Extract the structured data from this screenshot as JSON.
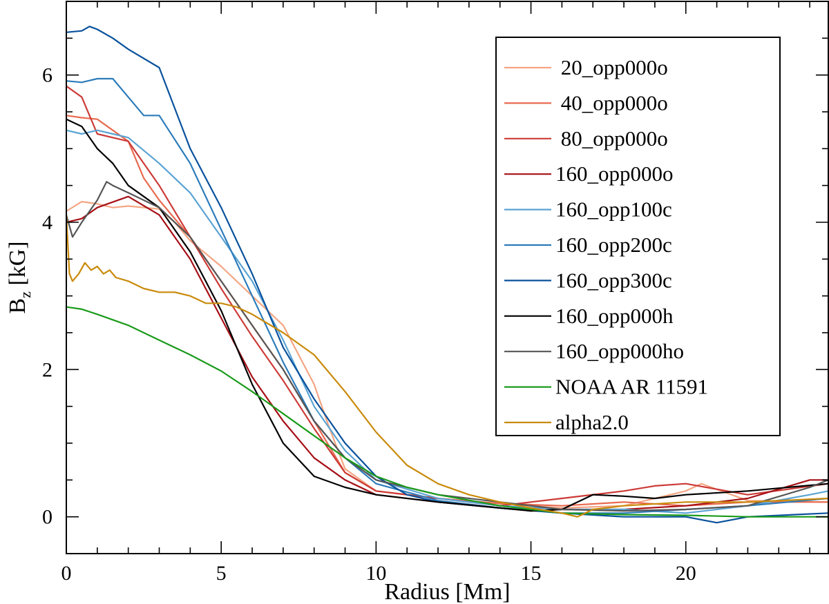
{
  "chart_data": {
    "type": "line",
    "title": "",
    "xlabel": "Radius [Mm]",
    "ylabel_main": "B",
    "ylabel_sub": "z",
    "ylabel_unit": " [kG]",
    "xlim": [
      0,
      24.6
    ],
    "ylim": [
      -0.5,
      7.0
    ],
    "xticks": [
      0,
      5,
      10,
      15,
      20
    ],
    "xtick_labels": [
      "0",
      "5",
      "10",
      "15",
      "20"
    ],
    "yticks": [
      0,
      2,
      4,
      6
    ],
    "ytick_labels": [
      "0",
      "2",
      "4",
      "6"
    ],
    "x_minor_step": 1,
    "y_minor_step": 0.5,
    "grid": false,
    "legend_position": "top-right",
    "series": [
      {
        "name": " 20_opp000o",
        "color": "#f4a582",
        "x": [
          0,
          0.5,
          1,
          1.5,
          2,
          2.5,
          3,
          3.5,
          4,
          5,
          6,
          7,
          8,
          8.5,
          9,
          10,
          12,
          14,
          16,
          18,
          20,
          20.5,
          22,
          24.6
        ],
        "y": [
          4.15,
          4.28,
          4.25,
          4.2,
          4.22,
          4.2,
          4.18,
          4.0,
          3.75,
          3.4,
          3.0,
          2.6,
          1.8,
          1.2,
          0.65,
          0.35,
          0.25,
          0.18,
          0.12,
          0.15,
          0.35,
          0.45,
          0.22,
          0.2
        ]
      },
      {
        "name": " 40_opp000o",
        "color": "#e8694e",
        "x": [
          0,
          0.5,
          1,
          2,
          2.5,
          3,
          4,
          5,
          6,
          7,
          8,
          9,
          10,
          12,
          14,
          16,
          18,
          20,
          22,
          24.6
        ],
        "y": [
          5.45,
          5.42,
          5.4,
          5.1,
          4.6,
          4.3,
          3.8,
          3.2,
          2.6,
          2.0,
          1.3,
          0.6,
          0.35,
          0.25,
          0.18,
          0.15,
          0.2,
          0.15,
          0.2,
          0.2
        ]
      },
      {
        "name": " 80_opp000o",
        "color": "#cc3a36",
        "x": [
          0,
          0.5,
          1,
          2,
          3,
          4,
          5,
          6,
          7,
          8,
          9,
          10,
          12,
          14,
          15,
          16,
          18,
          19,
          20,
          22,
          24.6
        ],
        "y": [
          5.85,
          5.7,
          5.2,
          5.1,
          4.5,
          3.8,
          3.1,
          2.45,
          1.85,
          1.2,
          0.6,
          0.35,
          0.25,
          0.15,
          0.2,
          0.25,
          0.35,
          0.42,
          0.45,
          0.3,
          0.45
        ]
      },
      {
        "name": "160_opp000o",
        "color": "#a50f15",
        "x": [
          0,
          0.5,
          1,
          2,
          3,
          4,
          5,
          6,
          7,
          8,
          9,
          10,
          12,
          14,
          15,
          16,
          18,
          20,
          22,
          24,
          24.6
        ],
        "y": [
          4.0,
          4.05,
          4.2,
          4.35,
          4.1,
          3.5,
          2.7,
          1.9,
          1.3,
          0.8,
          0.5,
          0.3,
          0.2,
          0.12,
          0.08,
          0.1,
          0.1,
          0.15,
          0.25,
          0.5,
          0.5
        ]
      },
      {
        "name": "160_opp100c",
        "color": "#5aa3d3",
        "x": [
          0,
          0.5,
          1,
          1.5,
          2,
          3,
          4,
          5,
          6,
          7,
          8,
          9,
          10,
          12,
          14,
          16,
          18,
          20,
          22,
          24,
          24.6
        ],
        "y": [
          5.25,
          5.2,
          5.25,
          5.2,
          5.15,
          4.8,
          4.4,
          3.8,
          3.2,
          2.4,
          1.5,
          0.9,
          0.5,
          0.25,
          0.15,
          0.1,
          0.1,
          0.05,
          0.15,
          0.3,
          0.35
        ]
      },
      {
        "name": "160_opp200c",
        "color": "#2b7bba",
        "x": [
          0,
          0.5,
          1,
          1.5,
          2,
          2.5,
          3,
          4,
          5,
          6,
          7,
          8,
          9,
          10,
          12,
          14,
          16,
          18,
          20,
          22,
          24.6
        ],
        "y": [
          5.92,
          5.9,
          5.95,
          5.95,
          5.7,
          5.45,
          5.45,
          4.8,
          3.9,
          3.0,
          2.1,
          1.3,
          0.8,
          0.45,
          0.22,
          0.12,
          0.05,
          0.05,
          0.1,
          0.15,
          0.25
        ]
      },
      {
        "name": "160_opp300c",
        "color": "#08519c",
        "x": [
          0,
          0.5,
          0.75,
          1,
          1.5,
          2,
          3,
          4,
          5,
          6,
          7,
          8,
          9,
          10,
          11,
          12,
          14,
          16,
          18,
          20,
          21,
          22,
          24.6
        ],
        "y": [
          6.58,
          6.6,
          6.66,
          6.62,
          6.5,
          6.35,
          6.1,
          5.0,
          4.2,
          3.3,
          2.3,
          1.6,
          1.0,
          0.55,
          0.3,
          0.2,
          0.12,
          0.05,
          0.0,
          0.0,
          -0.08,
          0.0,
          0.05
        ]
      },
      {
        "name": "160_opp000h",
        "color": "#000000",
        "x": [
          0,
          0.5,
          1,
          1.5,
          2,
          3,
          4,
          5,
          6,
          7,
          8,
          9,
          10,
          12,
          14,
          15,
          16,
          17,
          18,
          19,
          20,
          22,
          24.6
        ],
        "y": [
          5.4,
          5.3,
          5.0,
          4.8,
          4.5,
          4.2,
          3.6,
          2.8,
          1.8,
          1.0,
          0.55,
          0.4,
          0.3,
          0.2,
          0.12,
          0.08,
          0.1,
          0.3,
          0.28,
          0.25,
          0.3,
          0.35,
          0.45
        ]
      },
      {
        "name": "160_opp000ho",
        "color": "#555555",
        "x": [
          0,
          0.2,
          0.5,
          1,
          1.3,
          1.5,
          2,
          3,
          4,
          5,
          6,
          7,
          8,
          9,
          10,
          12,
          14,
          16,
          18,
          20,
          22,
          24,
          24.6
        ],
        "y": [
          4.1,
          3.8,
          4.0,
          4.3,
          4.55,
          4.5,
          4.4,
          4.2,
          3.8,
          3.2,
          2.6,
          2.0,
          1.3,
          0.8,
          0.5,
          0.3,
          0.2,
          0.1,
          0.08,
          0.1,
          0.15,
          0.4,
          0.5
        ]
      },
      {
        "name": "NOAA AR 11591",
        "color": "#1a9a1a",
        "x": [
          0,
          0.5,
          1,
          2,
          3,
          4,
          5,
          6,
          7,
          8,
          9,
          10,
          11,
          12,
          14,
          16,
          18,
          20,
          22,
          24.6
        ],
        "y": [
          2.85,
          2.82,
          2.75,
          2.6,
          2.4,
          2.2,
          1.98,
          1.7,
          1.4,
          1.1,
          0.8,
          0.55,
          0.4,
          0.3,
          0.15,
          0.05,
          0.03,
          0.02,
          0.0,
          0.0
        ]
      },
      {
        "name": "alpha2.0",
        "color": "#c98a0a",
        "x": [
          0,
          0.1,
          0.2,
          0.4,
          0.6,
          0.8,
          1,
          1.2,
          1.4,
          1.6,
          2,
          2.5,
          3,
          3.5,
          4,
          4.5,
          5,
          5.5,
          6,
          7,
          8,
          9,
          10,
          11,
          12,
          13,
          14,
          15,
          16,
          16.5,
          17,
          18,
          20,
          22,
          24.6
        ],
        "y": [
          4.1,
          3.3,
          3.2,
          3.3,
          3.45,
          3.35,
          3.4,
          3.3,
          3.35,
          3.25,
          3.2,
          3.1,
          3.05,
          3.05,
          3.0,
          2.9,
          2.9,
          2.85,
          2.75,
          2.5,
          2.2,
          1.7,
          1.15,
          0.7,
          0.45,
          0.3,
          0.2,
          0.12,
          0.05,
          0.0,
          0.1,
          0.15,
          0.2,
          0.2,
          0.25
        ]
      }
    ]
  }
}
